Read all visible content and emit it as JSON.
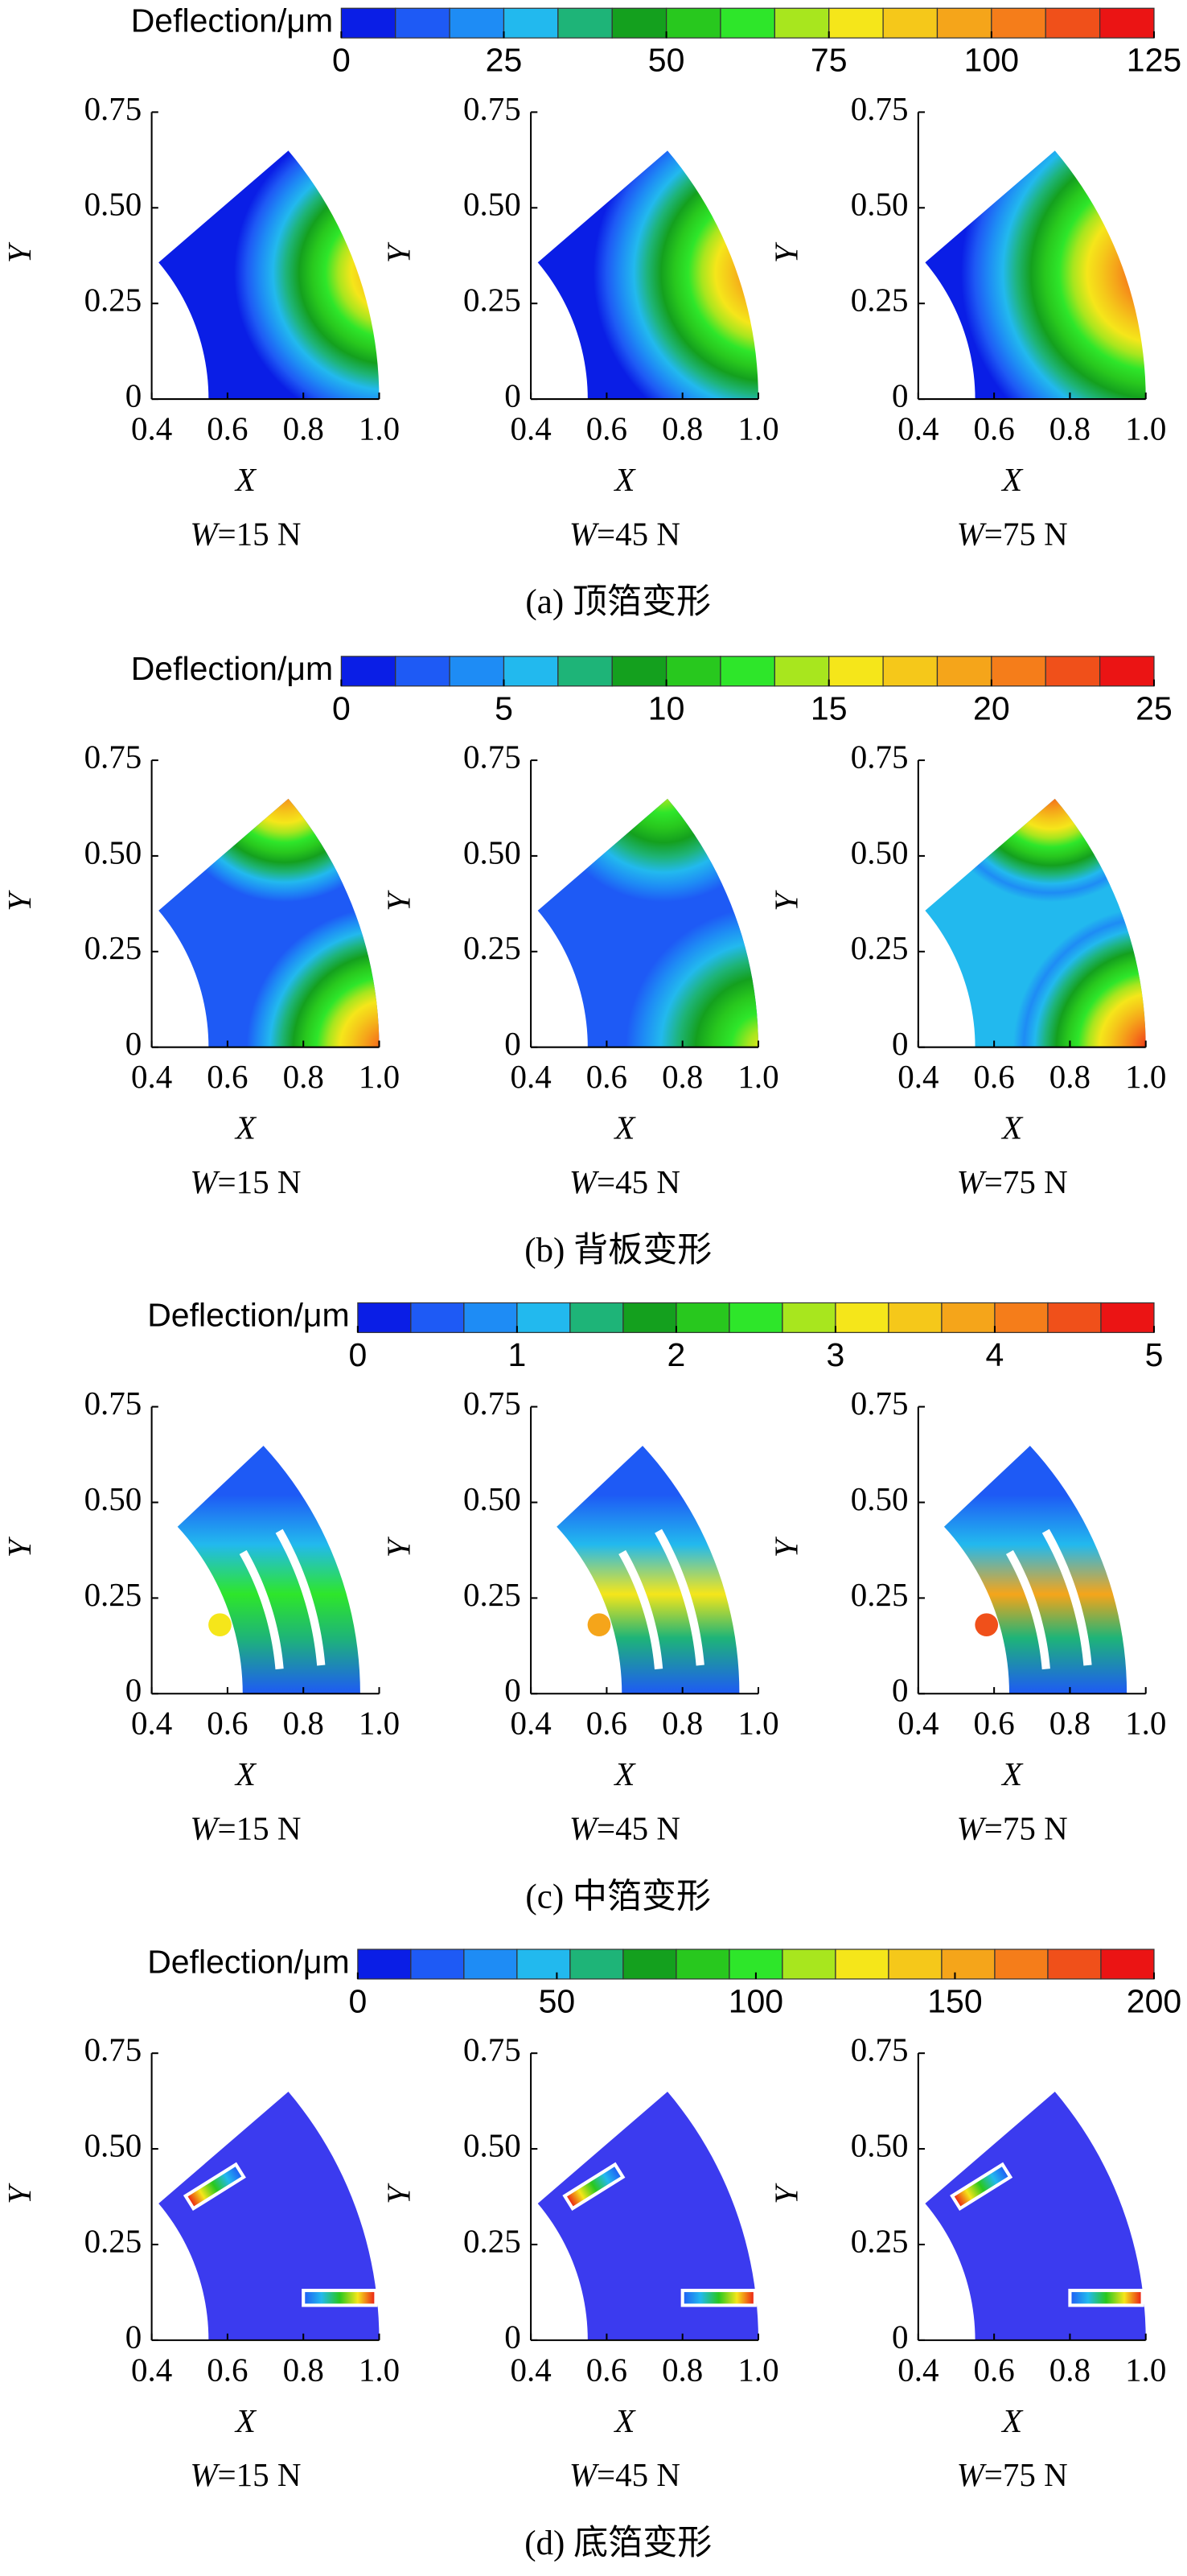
{
  "figure": {
    "panels": [
      {
        "caption": "(a) 顶箔变形",
        "colorbar": {
          "label": "Deflection/μm",
          "lim": [
            0,
            125
          ],
          "ticks": [
            0,
            25,
            50,
            75,
            100,
            125
          ],
          "colors": [
            "#0a1ee6",
            "#1e5af5",
            "#1e8cf5",
            "#22b9ee",
            "#1eb478",
            "#14a01e",
            "#28c81e",
            "#2ee62a",
            "#a8e61e",
            "#f5e61a",
            "#f5c81a",
            "#f5a51a",
            "#f57d1a",
            "#f0501a",
            "#eb1414"
          ]
        },
        "plots": [
          {
            "type": "contour",
            "title": "W=15 N",
            "xlabel": "X",
            "ylabel": "Y",
            "xlim": [
              0.4,
              1.0
            ],
            "ylim": [
              0,
              0.75
            ],
            "xticks": [
              0.4,
              0.6,
              0.8,
              {
                "value": 1,
                "label": "1.0"
              }
            ],
            "yticks": [
              0,
              0.25,
              {
                "value": 0.5,
                "label": "0.50"
              },
              0.75
            ]
          },
          {
            "type": "contour",
            "title": "W=45 N",
            "xlabel": "X",
            "ylabel": "Y",
            "xlim": [
              0.4,
              1.0
            ],
            "ylim": [
              0,
              0.75
            ],
            "xticks": [
              0.4,
              0.6,
              0.8,
              {
                "value": 1,
                "label": "1.0"
              }
            ],
            "yticks": [
              0,
              0.25,
              {
                "value": 0.5,
                "label": "0.50"
              },
              0.75
            ]
          },
          {
            "type": "contour",
            "title": "W=75 N",
            "xlabel": "X",
            "ylabel": "Y",
            "xlim": [
              0.4,
              1.0
            ],
            "ylim": [
              0,
              0.75
            ],
            "xticks": [
              0.4,
              0.6,
              0.8,
              {
                "value": 1,
                "label": "1.0"
              }
            ],
            "yticks": [
              0,
              0.25,
              {
                "value": 0.5,
                "label": "0.50"
              },
              0.75
            ]
          }
        ]
      },
      {
        "caption": "(b) 背板变形",
        "colorbar": {
          "label": "Deflection/μm",
          "lim": [
            0,
            25
          ],
          "ticks": [
            0,
            5,
            10,
            15,
            20,
            25
          ],
          "colors": [
            "#0a1ee6",
            "#1e5af5",
            "#1e8cf5",
            "#22b9ee",
            "#1eb478",
            "#14a01e",
            "#28c81e",
            "#2ee62a",
            "#a8e61e",
            "#f5e61a",
            "#f5c81a",
            "#f5a51a",
            "#f57d1a",
            "#f0501a",
            "#eb1414"
          ]
        },
        "plots": [
          {
            "type": "contour",
            "title": "W=15 N",
            "xlabel": "X",
            "ylabel": "Y",
            "xlim": [
              0.4,
              1.0
            ],
            "ylim": [
              0,
              0.75
            ],
            "xticks": [
              0.4,
              0.6,
              0.8,
              {
                "value": 1,
                "label": "1.0"
              }
            ],
            "yticks": [
              0,
              0.25,
              {
                "value": 0.5,
                "label": "0.50"
              },
              0.75
            ]
          },
          {
            "type": "contour",
            "title": "W=45 N",
            "xlabel": "X",
            "ylabel": "Y",
            "xlim": [
              0.4,
              1.0
            ],
            "ylim": [
              0,
              0.75
            ],
            "xticks": [
              0.4,
              0.6,
              0.8,
              {
                "value": 1,
                "label": "1.0"
              }
            ],
            "yticks": [
              0,
              0.25,
              {
                "value": 0.5,
                "label": "0.50"
              },
              0.75
            ]
          },
          {
            "type": "contour",
            "title": "W=75 N",
            "xlabel": "X",
            "ylabel": "Y",
            "xlim": [
              0.4,
              1.0
            ],
            "ylim": [
              0,
              0.75
            ],
            "xticks": [
              0.4,
              0.6,
              0.8,
              {
                "value": 1,
                "label": "1.0"
              }
            ],
            "yticks": [
              0,
              0.25,
              {
                "value": 0.5,
                "label": "0.50"
              },
              0.75
            ]
          }
        ]
      },
      {
        "caption": "(c) 中箔变形",
        "colorbar": {
          "label": "Deflection/μm",
          "lim": [
            0,
            5
          ],
          "ticks": [
            0,
            1,
            2,
            3,
            4,
            5
          ],
          "colors": [
            "#0a1ee6",
            "#1e5af5",
            "#1e8cf5",
            "#22b9ee",
            "#1eb478",
            "#14a01e",
            "#28c81e",
            "#2ee62a",
            "#a8e61e",
            "#f5e61a",
            "#f5c81a",
            "#f5a51a",
            "#f57d1a",
            "#f0501a",
            "#eb1414"
          ]
        },
        "plots": [
          {
            "type": "contour",
            "title": "W=15 N",
            "xlabel": "X",
            "ylabel": "Y",
            "xlim": [
              0.4,
              1.0
            ],
            "ylim": [
              0,
              0.75
            ],
            "xticks": [
              0.4,
              0.6,
              0.8,
              {
                "value": 1,
                "label": "1.0"
              }
            ],
            "yticks": [
              0,
              0.25,
              {
                "value": 0.5,
                "label": "0.50"
              },
              0.75
            ]
          },
          {
            "type": "contour",
            "title": "W=45 N",
            "xlabel": "X",
            "ylabel": "Y",
            "xlim": [
              0.4,
              1.0
            ],
            "ylim": [
              0,
              0.75
            ],
            "xticks": [
              0.4,
              0.6,
              0.8,
              {
                "value": 1,
                "label": "1.0"
              }
            ],
            "yticks": [
              0,
              0.25,
              {
                "value": 0.5,
                "label": "0.50"
              },
              0.75
            ]
          },
          {
            "type": "contour",
            "title": "W=75 N",
            "xlabel": "X",
            "ylabel": "Y",
            "xlim": [
              0.4,
              1.0
            ],
            "ylim": [
              0,
              0.75
            ],
            "xticks": [
              0.4,
              0.6,
              0.8,
              {
                "value": 1,
                "label": "1.0"
              }
            ],
            "yticks": [
              0,
              0.25,
              {
                "value": 0.5,
                "label": "0.50"
              },
              0.75
            ]
          }
        ]
      },
      {
        "caption": "(d) 底箔变形",
        "colorbar": {
          "label": "Deflection/μm",
          "lim": [
            0,
            200
          ],
          "ticks": [
            0,
            50,
            100,
            150,
            200
          ],
          "colors": [
            "#0a1ee6",
            "#1e5af5",
            "#1e8cf5",
            "#22b9ee",
            "#1eb478",
            "#14a01e",
            "#28c81e",
            "#2ee62a",
            "#a8e61e",
            "#f5e61a",
            "#f5c81a",
            "#f5a51a",
            "#f57d1a",
            "#f0501a",
            "#eb1414"
          ]
        },
        "plots": [
          {
            "type": "contour",
            "title": "W=15 N",
            "xlabel": "X",
            "ylabel": "Y",
            "xlim": [
              0.4,
              1.0
            ],
            "ylim": [
              0,
              0.75
            ],
            "xticks": [
              0.4,
              0.6,
              0.8,
              {
                "value": 1,
                "label": "1.0"
              }
            ],
            "yticks": [
              0,
              0.25,
              {
                "value": 0.5,
                "label": "0.50"
              },
              0.75
            ]
          },
          {
            "type": "contour",
            "title": "W=45 N",
            "xlabel": "X",
            "ylabel": "Y",
            "xlim": [
              0.4,
              1.0
            ],
            "ylim": [
              0,
              0.75
            ],
            "xticks": [
              0.4,
              0.6,
              0.8,
              {
                "value": 1,
                "label": "1.0"
              }
            ],
            "yticks": [
              0,
              0.25,
              {
                "value": 0.5,
                "label": "0.50"
              },
              0.75
            ]
          },
          {
            "type": "contour",
            "title": "W=75 N",
            "xlabel": "X",
            "ylabel": "Y",
            "xlim": [
              0.4,
              1.0
            ],
            "ylim": [
              0,
              0.75
            ],
            "xticks": [
              0.4,
              0.6,
              0.8,
              {
                "value": 1,
                "label": "1.0"
              }
            ],
            "yticks": [
              0,
              0.25,
              {
                "value": 0.5,
                "label": "0.50"
              },
              0.75
            ]
          }
        ]
      }
    ]
  }
}
